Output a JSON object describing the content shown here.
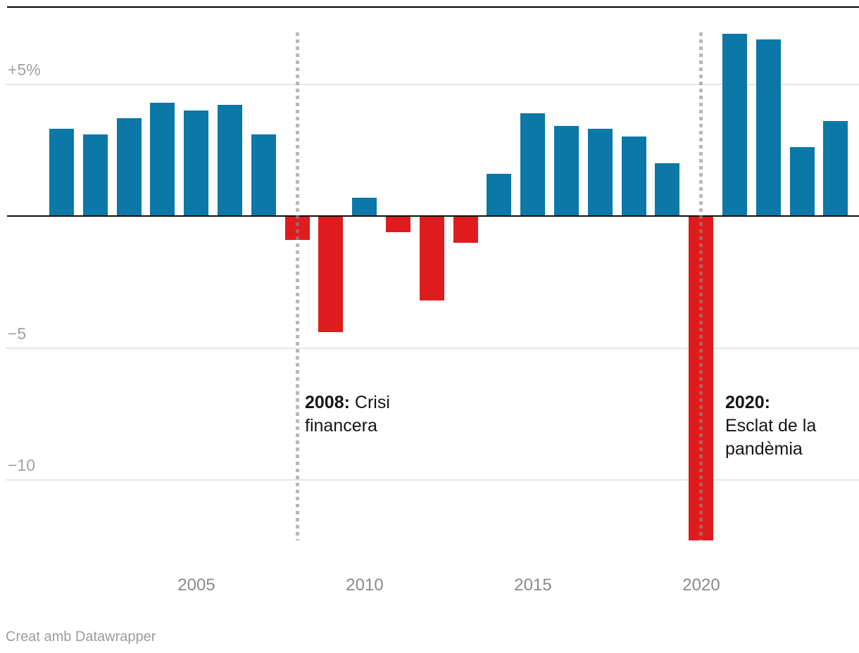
{
  "chart_data": {
    "type": "bar",
    "x": [
      2001,
      2002,
      2003,
      2004,
      2005,
      2006,
      2007,
      2008,
      2009,
      2010,
      2011,
      2012,
      2013,
      2014,
      2015,
      2016,
      2017,
      2018,
      2019,
      2020,
      2021,
      2022,
      2023,
      2024
    ],
    "values": [
      3.3,
      3.1,
      3.7,
      4.3,
      4.0,
      4.2,
      3.1,
      -0.9,
      -4.4,
      0.7,
      -0.6,
      -3.2,
      -1.0,
      1.6,
      3.9,
      3.4,
      3.3,
      3.0,
      2.0,
      -12.3,
      6.9,
      6.7,
      2.6,
      3.6
    ],
    "unit": "%",
    "ylim": [
      -12.3,
      7.0
    ],
    "grid": true,
    "positive_color": "#0b78a8",
    "negative_color": "#e01b1d",
    "y_gridlines": [
      {
        "value": 5,
        "label": "+5%"
      },
      {
        "value": -5,
        "label": "−5"
      },
      {
        "value": -10,
        "label": "−10"
      }
    ],
    "x_ticks": [
      "2005",
      "2010",
      "2015",
      "2020"
    ],
    "annotations": [
      {
        "year": 2008,
        "bold": "2008:",
        "text": "Crisi financera"
      },
      {
        "year": 2020,
        "bold": "2020:",
        "text": "Esclat de la pandèmia"
      }
    ]
  },
  "footer": {
    "credit": "Creat amb Datawrapper"
  }
}
